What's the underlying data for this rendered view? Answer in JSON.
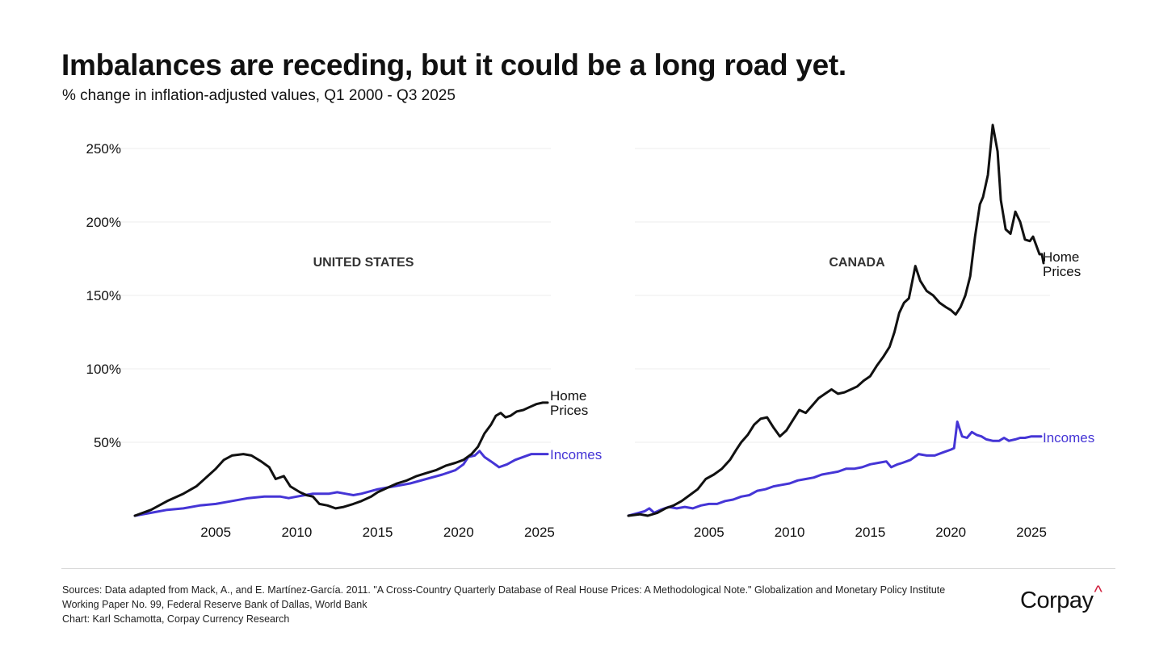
{
  "header": {
    "title": "Imbalances are receding, but it could be a long road yet.",
    "subtitle": "% change in inflation-adjusted values, Q1 2000 - Q3 2025"
  },
  "footer": {
    "source_lines": [
      "Sources: Data adapted from Mack, A., and E. Martínez-García. 2011. \"A Cross-Country Quarterly Database of Real House Prices: A Methodological Note.\" Globalization and Monetary Policy Institute",
      "Working Paper No. 99, Federal Reserve Bank of Dallas, World Bank",
      "Chart: Karl Schamotta, Corpay Currency Research"
    ],
    "logo_text": "Corpay",
    "logo_accent": "^"
  },
  "colors": {
    "home_prices": "#111111",
    "incomes": "#4535d6",
    "grid": "#ececec",
    "logo_accent": "#d0213f"
  },
  "chart_data": [
    {
      "type": "line",
      "panel_label": "UNITED STATES",
      "y_ticks": [
        "50%",
        "100%",
        "150%",
        "200%",
        "250%"
      ],
      "x_ticks": [
        "2005",
        "2010",
        "2015",
        "2020",
        "2025"
      ],
      "ylim": [
        0,
        250
      ],
      "xlim": [
        2000.0,
        2025.75
      ],
      "grid": true,
      "series": [
        {
          "name": "Home Prices",
          "label_lines": [
            "Home",
            "Prices"
          ],
          "points": [
            [
              2000.0,
              0
            ],
            [
              2001.0,
              4
            ],
            [
              2002.0,
              10
            ],
            [
              2003.0,
              15
            ],
            [
              2003.8,
              20
            ],
            [
              2004.5,
              27
            ],
            [
              2005.0,
              32
            ],
            [
              2005.5,
              38
            ],
            [
              2006.0,
              41
            ],
            [
              2006.7,
              42
            ],
            [
              2007.2,
              41
            ],
            [
              2007.8,
              37
            ],
            [
              2008.3,
              33
            ],
            [
              2008.7,
              25
            ],
            [
              2009.2,
              27
            ],
            [
              2009.6,
              20
            ],
            [
              2010.2,
              16
            ],
            [
              2010.6,
              14
            ],
            [
              2011.0,
              13
            ],
            [
              2011.4,
              8
            ],
            [
              2011.9,
              7
            ],
            [
              2012.4,
              5
            ],
            [
              2012.9,
              6
            ],
            [
              2013.5,
              8
            ],
            [
              2014.0,
              10
            ],
            [
              2014.6,
              13
            ],
            [
              2015.0,
              16
            ],
            [
              2015.6,
              19
            ],
            [
              2016.2,
              22
            ],
            [
              2016.8,
              24
            ],
            [
              2017.4,
              27
            ],
            [
              2018.0,
              29
            ],
            [
              2018.6,
              31
            ],
            [
              2019.2,
              34
            ],
            [
              2019.8,
              36
            ],
            [
              2020.3,
              38
            ],
            [
              2020.8,
              42
            ],
            [
              2021.2,
              47
            ],
            [
              2021.6,
              56
            ],
            [
              2022.0,
              62
            ],
            [
              2022.3,
              68
            ],
            [
              2022.6,
              70
            ],
            [
              2022.9,
              67
            ],
            [
              2023.2,
              68
            ],
            [
              2023.6,
              71
            ],
            [
              2024.0,
              72
            ],
            [
              2024.4,
              74
            ],
            [
              2024.8,
              76
            ],
            [
              2025.2,
              77
            ],
            [
              2025.5,
              77
            ]
          ]
        },
        {
          "name": "Incomes",
          "label_lines": [
            "Incomes"
          ],
          "points": [
            [
              2000.0,
              0
            ],
            [
              2001.0,
              2
            ],
            [
              2002.0,
              4
            ],
            [
              2003.0,
              5
            ],
            [
              2004.0,
              7
            ],
            [
              2005.0,
              8
            ],
            [
              2006.0,
              10
            ],
            [
              2007.0,
              12
            ],
            [
              2008.0,
              13
            ],
            [
              2008.5,
              13
            ],
            [
              2009.0,
              13
            ],
            [
              2009.5,
              12
            ],
            [
              2010.0,
              13
            ],
            [
              2010.5,
              14
            ],
            [
              2011.0,
              15
            ],
            [
              2012.0,
              15
            ],
            [
              2012.5,
              16
            ],
            [
              2013.0,
              15
            ],
            [
              2013.5,
              14
            ],
            [
              2014.0,
              15
            ],
            [
              2015.0,
              18
            ],
            [
              2016.0,
              20
            ],
            [
              2017.0,
              22
            ],
            [
              2018.0,
              25
            ],
            [
              2019.0,
              28
            ],
            [
              2019.8,
              31
            ],
            [
              2020.3,
              35
            ],
            [
              2020.6,
              40
            ],
            [
              2021.0,
              41
            ],
            [
              2021.3,
              44
            ],
            [
              2021.6,
              40
            ],
            [
              2022.0,
              37
            ],
            [
              2022.5,
              33
            ],
            [
              2023.0,
              35
            ],
            [
              2023.5,
              38
            ],
            [
              2024.0,
              40
            ],
            [
              2024.5,
              42
            ],
            [
              2025.0,
              42
            ],
            [
              2025.5,
              42
            ]
          ]
        }
      ]
    },
    {
      "type": "line",
      "panel_label": "CANADA",
      "y_ticks": [
        "50%",
        "100%",
        "150%",
        "200%",
        "250%"
      ],
      "x_ticks": [
        "2005",
        "2010",
        "2015",
        "2020",
        "2025"
      ],
      "ylim": [
        0,
        250
      ],
      "xlim": [
        2000.0,
        2025.75
      ],
      "grid": true,
      "series": [
        {
          "name": "Home Prices",
          "label_lines": [
            "Home",
            "Prices"
          ],
          "points": [
            [
              2000.0,
              0
            ],
            [
              2000.7,
              1
            ],
            [
              2001.2,
              0
            ],
            [
              2001.8,
              2
            ],
            [
              2002.3,
              5
            ],
            [
              2002.8,
              7
            ],
            [
              2003.3,
              10
            ],
            [
              2003.8,
              14
            ],
            [
              2004.3,
              18
            ],
            [
              2004.8,
              25
            ],
            [
              2005.3,
              28
            ],
            [
              2005.8,
              32
            ],
            [
              2006.3,
              38
            ],
            [
              2006.7,
              45
            ],
            [
              2007.0,
              50
            ],
            [
              2007.4,
              55
            ],
            [
              2007.8,
              62
            ],
            [
              2008.2,
              66
            ],
            [
              2008.6,
              67
            ],
            [
              2009.0,
              60
            ],
            [
              2009.4,
              54
            ],
            [
              2009.8,
              58
            ],
            [
              2010.2,
              65
            ],
            [
              2010.6,
              72
            ],
            [
              2011.0,
              70
            ],
            [
              2011.4,
              75
            ],
            [
              2011.8,
              80
            ],
            [
              2012.2,
              83
            ],
            [
              2012.6,
              86
            ],
            [
              2013.0,
              83
            ],
            [
              2013.4,
              84
            ],
            [
              2013.8,
              86
            ],
            [
              2014.2,
              88
            ],
            [
              2014.6,
              92
            ],
            [
              2015.0,
              95
            ],
            [
              2015.4,
              102
            ],
            [
              2015.8,
              108
            ],
            [
              2016.2,
              115
            ],
            [
              2016.5,
              125
            ],
            [
              2016.8,
              138
            ],
            [
              2017.1,
              145
            ],
            [
              2017.4,
              148
            ],
            [
              2017.8,
              170
            ],
            [
              2018.1,
              160
            ],
            [
              2018.5,
              153
            ],
            [
              2018.9,
              150
            ],
            [
              2019.3,
              145
            ],
            [
              2019.7,
              142
            ],
            [
              2020.0,
              140
            ],
            [
              2020.3,
              137
            ],
            [
              2020.6,
              142
            ],
            [
              2020.9,
              150
            ],
            [
              2021.2,
              163
            ],
            [
              2021.5,
              190
            ],
            [
              2021.8,
              212
            ],
            [
              2022.0,
              217
            ],
            [
              2022.3,
              232
            ],
            [
              2022.6,
              266
            ],
            [
              2022.9,
              248
            ],
            [
              2023.1,
              215
            ],
            [
              2023.4,
              195
            ],
            [
              2023.7,
              192
            ],
            [
              2024.0,
              207
            ],
            [
              2024.3,
              200
            ],
            [
              2024.6,
              188
            ],
            [
              2024.9,
              187
            ],
            [
              2025.1,
              190
            ],
            [
              2025.3,
              184
            ],
            [
              2025.5,
              178
            ],
            [
              2025.65,
              178
            ],
            [
              2025.75,
              172
            ]
          ]
        },
        {
          "name": "Incomes",
          "label_lines": [
            "Incomes"
          ],
          "points": [
            [
              2000.0,
              0
            ],
            [
              2001.0,
              3
            ],
            [
              2001.3,
              5
            ],
            [
              2001.6,
              2
            ],
            [
              2002.0,
              4
            ],
            [
              2002.5,
              6
            ],
            [
              2003.0,
              5
            ],
            [
              2003.5,
              6
            ],
            [
              2004.0,
              5
            ],
            [
              2004.5,
              7
            ],
            [
              2005.0,
              8
            ],
            [
              2005.5,
              8
            ],
            [
              2006.0,
              10
            ],
            [
              2006.5,
              11
            ],
            [
              2007.0,
              13
            ],
            [
              2007.5,
              14
            ],
            [
              2008.0,
              17
            ],
            [
              2008.5,
              18
            ],
            [
              2009.0,
              20
            ],
            [
              2009.5,
              21
            ],
            [
              2010.0,
              22
            ],
            [
              2010.5,
              24
            ],
            [
              2011.0,
              25
            ],
            [
              2011.5,
              26
            ],
            [
              2012.0,
              28
            ],
            [
              2012.5,
              29
            ],
            [
              2013.0,
              30
            ],
            [
              2013.5,
              32
            ],
            [
              2014.0,
              32
            ],
            [
              2014.5,
              33
            ],
            [
              2015.0,
              35
            ],
            [
              2015.5,
              36
            ],
            [
              2016.0,
              37
            ],
            [
              2016.3,
              33
            ],
            [
              2016.7,
              35
            ],
            [
              2017.0,
              36
            ],
            [
              2017.5,
              38
            ],
            [
              2018.0,
              42
            ],
            [
              2018.5,
              41
            ],
            [
              2019.0,
              41
            ],
            [
              2019.5,
              43
            ],
            [
              2020.0,
              45
            ],
            [
              2020.2,
              46
            ],
            [
              2020.4,
              64
            ],
            [
              2020.7,
              54
            ],
            [
              2021.0,
              53
            ],
            [
              2021.3,
              57
            ],
            [
              2021.6,
              55
            ],
            [
              2021.9,
              54
            ],
            [
              2022.2,
              52
            ],
            [
              2022.6,
              51
            ],
            [
              2023.0,
              51
            ],
            [
              2023.3,
              53
            ],
            [
              2023.6,
              51
            ],
            [
              2024.0,
              52
            ],
            [
              2024.3,
              53
            ],
            [
              2024.6,
              53
            ],
            [
              2025.0,
              54
            ],
            [
              2025.3,
              54
            ],
            [
              2025.6,
              54
            ]
          ]
        }
      ]
    }
  ]
}
